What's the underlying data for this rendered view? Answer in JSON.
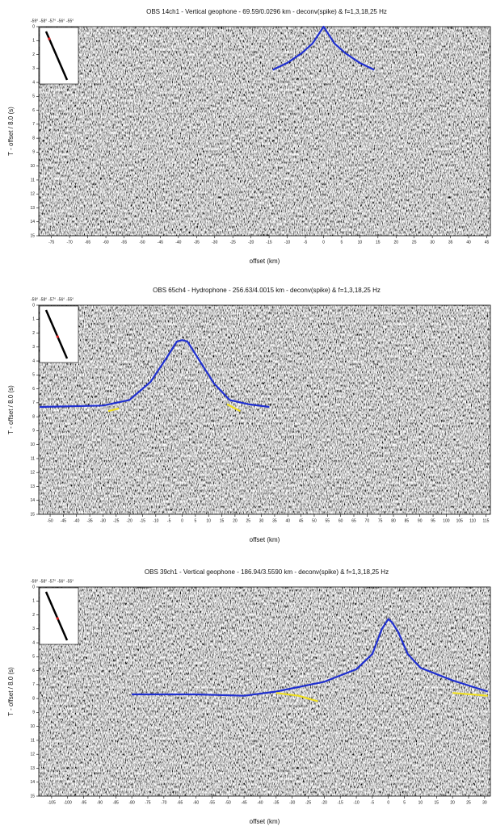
{
  "chart_data": [
    {
      "type": "line",
      "title": "OBS 14ch1 - Vertical geophone - 69.59/0.0296 km - deconv(spike) & f=1,3,18,25 Hz",
      "xlabel": "offset (km)",
      "ylabel": "T - offset / 8.0 (s)",
      "inset_ticks": [
        "-59°",
        "-58°",
        "-57°",
        "-56°",
        "-55°"
      ],
      "xlim": [
        -78.5,
        46
      ],
      "xticks": [
        -75,
        -70,
        -65,
        -60,
        -55,
        -50,
        -45,
        -40,
        -35,
        -30,
        -25,
        -20,
        -15,
        -10,
        -5,
        0,
        5,
        10,
        15,
        20,
        25,
        30,
        35,
        40,
        45
      ],
      "ylim": [
        0,
        15
      ],
      "yticks": [
        0,
        1,
        2,
        3,
        4,
        5,
        6,
        7,
        8,
        9,
        10,
        11,
        12,
        13,
        14,
        15
      ],
      "y_inverted": true,
      "series": [
        {
          "color": "#1f2fd0",
          "x": [
            -14,
            -10,
            -6,
            -3,
            -1,
            0,
            1,
            3,
            6,
            10,
            14
          ],
          "values": [
            3.1,
            2.6,
            1.9,
            1.2,
            0.4,
            0,
            0.4,
            1.2,
            1.9,
            2.6,
            3.1
          ]
        }
      ]
    },
    {
      "type": "line",
      "title": "OBS 65ch4 - Hydrophone - 256.63/4.0015 km - deconv(spike) & f=1,3,18,25 Hz",
      "xlabel": "offset (km)",
      "ylabel": "T - offset / 8.0 (s)",
      "inset_ticks": [
        "-59°",
        "-58°",
        "-57°",
        "-56°",
        "-55°"
      ],
      "xlim": [
        -54.3,
        116.7
      ],
      "xticks": [
        -50,
        -45,
        -40,
        -35,
        -30,
        -25,
        -20,
        -15,
        -10,
        -5,
        0,
        5,
        10,
        15,
        20,
        25,
        30,
        35,
        40,
        45,
        50,
        55,
        60,
        65,
        70,
        75,
        80,
        85,
        90,
        95,
        100,
        105,
        110,
        115
      ],
      "ylim": [
        0,
        15
      ],
      "yticks": [
        0,
        1,
        2,
        3,
        4,
        5,
        6,
        7,
        8,
        9,
        10,
        11,
        12,
        13,
        14,
        15
      ],
      "y_inverted": true,
      "series": [
        {
          "color": "#1f2fd0",
          "x": [
            -54,
            -30,
            -20,
            -12,
            -6,
            -2,
            0,
            2,
            6,
            12,
            18,
            25,
            33
          ],
          "values": [
            7.3,
            7.2,
            6.8,
            5.5,
            3.8,
            2.6,
            2.5,
            2.6,
            3.8,
            5.6,
            6.8,
            7.1,
            7.3
          ]
        },
        {
          "color": "#f0e020",
          "x": [
            -28,
            -24,
            null,
            17,
            22
          ],
          "values": [
            7.6,
            7.4,
            null,
            7.1,
            7.6
          ]
        }
      ]
    },
    {
      "type": "line",
      "title": "OBS 39ch1 - Vertical geophone - 186.94/3.5590 km - deconv(spike) & f=1,3,18,25 Hz",
      "xlabel": "offset (km)",
      "ylabel": "T - offset / 8.0 (s)",
      "inset_ticks": [
        "-59°",
        "-58°",
        "-57°",
        "-56°",
        "-55°"
      ],
      "xlim": [
        -109,
        31.8
      ],
      "xticks": [
        -105,
        -100,
        -95,
        -90,
        -85,
        -80,
        -75,
        -70,
        -65,
        -60,
        -55,
        -50,
        -45,
        -40,
        -35,
        -30,
        -25,
        -20,
        -15,
        -10,
        -5,
        0,
        5,
        10,
        15,
        20,
        25,
        30
      ],
      "ylim": [
        0,
        15
      ],
      "yticks": [
        0,
        1,
        2,
        3,
        4,
        5,
        6,
        7,
        8,
        9,
        10,
        11,
        12,
        13,
        14,
        15
      ],
      "y_inverted": true,
      "series": [
        {
          "color": "#1f2fd0",
          "x": [
            -80,
            -60,
            -45,
            -35,
            -20,
            -10,
            -5,
            -2,
            0,
            1,
            3,
            6,
            10,
            20,
            31
          ],
          "values": [
            7.7,
            7.7,
            7.8,
            7.5,
            6.8,
            5.9,
            4.8,
            3.0,
            2.3,
            2.5,
            3.2,
            4.8,
            5.8,
            6.7,
            7.5
          ]
        },
        {
          "color": "#f0e020",
          "x": [
            -35,
            -28,
            -22,
            null,
            20,
            31
          ],
          "values": [
            7.6,
            7.8,
            8.2,
            null,
            7.6,
            7.8
          ]
        }
      ]
    }
  ]
}
